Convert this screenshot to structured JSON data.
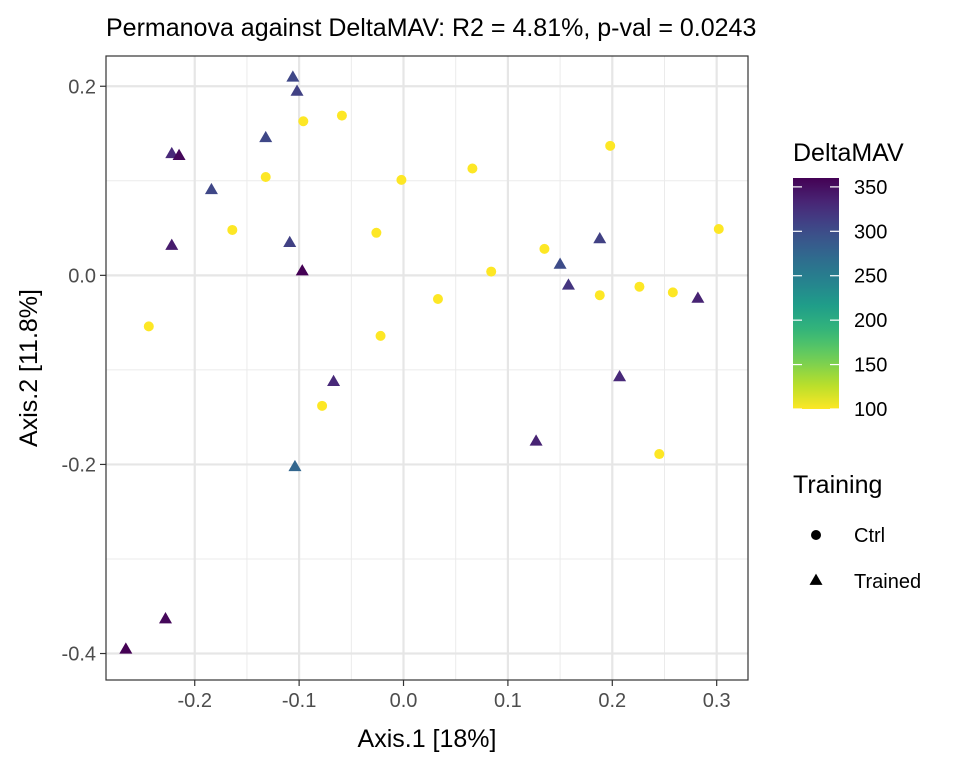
{
  "chart_data": {
    "type": "scatter",
    "title": "Permanova against DeltaMAV: R2 = 4.81%, p-val = 0.0243",
    "xlabel": "Axis.1   [18%]",
    "ylabel": "Axis.2   [11.8%]",
    "xlim": [
      -0.285,
      0.33
    ],
    "ylim": [
      -0.428,
      0.232
    ],
    "x_ticks": [
      -0.2,
      -0.1,
      0.0,
      0.1,
      0.2,
      0.3
    ],
    "x_tick_labels": [
      "-0.2",
      "-0.1",
      "0.0",
      "0.1",
      "0.2",
      "0.3"
    ],
    "y_ticks": [
      0.2,
      0.0,
      -0.2,
      -0.4
    ],
    "y_tick_labels": [
      "0.2",
      "0.0",
      "-0.2",
      "-0.4"
    ],
    "grid": true,
    "color_legend": {
      "title": "DeltaMAV",
      "min": 100,
      "max": 360,
      "ticks": [
        350,
        300,
        250,
        200,
        150,
        100
      ],
      "tick_labels": [
        "350",
        "300",
        "250",
        "200",
        "150",
        "100"
      ],
      "palette": "viridis",
      "placement": "right"
    },
    "shape_legend": {
      "title": "Training",
      "placement": "right",
      "items": [
        {
          "label": "Ctrl",
          "shape": "circle"
        },
        {
          "label": "Trained",
          "shape": "triangle"
        }
      ]
    },
    "series": [
      {
        "name": "Ctrl",
        "shape": "circle",
        "points": [
          {
            "x": -0.096,
            "y": 0.163,
            "value": 100
          },
          {
            "x": -0.059,
            "y": 0.169,
            "value": 100
          },
          {
            "x": 0.198,
            "y": 0.137,
            "value": 100
          },
          {
            "x": -0.132,
            "y": 0.104,
            "value": 100
          },
          {
            "x": -0.002,
            "y": 0.101,
            "value": 100
          },
          {
            "x": 0.066,
            "y": 0.113,
            "value": 100
          },
          {
            "x": -0.164,
            "y": 0.048,
            "value": 100
          },
          {
            "x": -0.026,
            "y": 0.045,
            "value": 100
          },
          {
            "x": 0.302,
            "y": 0.049,
            "value": 100
          },
          {
            "x": 0.135,
            "y": 0.028,
            "value": 100
          },
          {
            "x": 0.084,
            "y": 0.004,
            "value": 100
          },
          {
            "x": -0.244,
            "y": -0.054,
            "value": 100
          },
          {
            "x": 0.033,
            "y": -0.025,
            "value": 100
          },
          {
            "x": 0.188,
            "y": -0.021,
            "value": 100
          },
          {
            "x": 0.226,
            "y": -0.012,
            "value": 100
          },
          {
            "x": 0.258,
            "y": -0.018,
            "value": 100
          },
          {
            "x": -0.022,
            "y": -0.064,
            "value": 100
          },
          {
            "x": -0.078,
            "y": -0.138,
            "value": 100
          },
          {
            "x": 0.245,
            "y": -0.189,
            "value": 100
          }
        ]
      },
      {
        "name": "Trained",
        "shape": "triangle",
        "points": [
          {
            "x": -0.106,
            "y": 0.209,
            "value": 305
          },
          {
            "x": -0.102,
            "y": 0.194,
            "value": 310
          },
          {
            "x": -0.132,
            "y": 0.145,
            "value": 305
          },
          {
            "x": -0.222,
            "y": 0.128,
            "value": 330
          },
          {
            "x": -0.215,
            "y": 0.126,
            "value": 355
          },
          {
            "x": -0.184,
            "y": 0.09,
            "value": 305
          },
          {
            "x": -0.109,
            "y": 0.034,
            "value": 310
          },
          {
            "x": -0.222,
            "y": 0.031,
            "value": 340
          },
          {
            "x": -0.097,
            "y": 0.004,
            "value": 360
          },
          {
            "x": 0.188,
            "y": 0.038,
            "value": 310
          },
          {
            "x": 0.15,
            "y": 0.011,
            "value": 300
          },
          {
            "x": 0.158,
            "y": -0.011,
            "value": 320
          },
          {
            "x": 0.282,
            "y": -0.025,
            "value": 335
          },
          {
            "x": -0.067,
            "y": -0.113,
            "value": 330
          },
          {
            "x": 0.207,
            "y": -0.108,
            "value": 330
          },
          {
            "x": 0.127,
            "y": -0.176,
            "value": 335
          },
          {
            "x": -0.104,
            "y": -0.203,
            "value": 275
          },
          {
            "x": -0.228,
            "y": -0.364,
            "value": 355
          },
          {
            "x": -0.266,
            "y": -0.396,
            "value": 360
          }
        ]
      }
    ]
  }
}
